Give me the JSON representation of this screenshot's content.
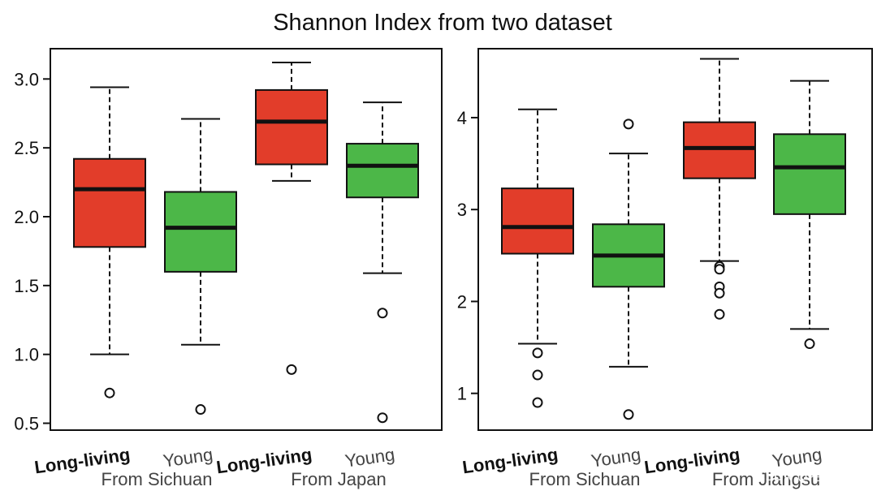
{
  "title": "Shannon Index from two dataset",
  "watermark": "CSDN @谷禾牛博",
  "colors": {
    "long_living": "#e23d2a",
    "young": "#4cb748",
    "axis": "#111111"
  },
  "chart_data": [
    {
      "type": "box",
      "panel": "left",
      "ylim": [
        0.45,
        3.22
      ],
      "yticks": [
        0.5,
        1.0,
        1.5,
        2.0,
        2.5,
        3.0
      ],
      "ytick_labels": [
        "0.5",
        "1.0",
        "1.5",
        "2.0",
        "2.5",
        "3.0"
      ],
      "groups": [
        "From Sichuan",
        "From Japan"
      ],
      "boxes": [
        {
          "label": "Long-living",
          "group": 0,
          "color": "long_living",
          "whisker_low": 1.0,
          "q1": 1.78,
          "median": 2.2,
          "q3": 2.42,
          "whisker_high": 2.94,
          "outliers": [
            0.72
          ]
        },
        {
          "label": "Young",
          "group": 0,
          "color": "young",
          "whisker_low": 1.07,
          "q1": 1.6,
          "median": 1.92,
          "q3": 2.18,
          "whisker_high": 2.71,
          "outliers": [
            0.6
          ]
        },
        {
          "label": "Long-living",
          "group": 1,
          "color": "long_living",
          "whisker_low": 2.26,
          "q1": 2.38,
          "median": 2.69,
          "q3": 2.92,
          "whisker_high": 3.12,
          "outliers": [
            0.89
          ]
        },
        {
          "label": "Young",
          "group": 1,
          "color": "young",
          "whisker_low": 1.59,
          "q1": 2.14,
          "median": 2.37,
          "q3": 2.53,
          "whisker_high": 2.83,
          "outliers": [
            1.3,
            0.54
          ]
        }
      ]
    },
    {
      "type": "box",
      "panel": "right",
      "ylim": [
        0.6,
        4.75
      ],
      "yticks": [
        1,
        2,
        3,
        4
      ],
      "ytick_labels": [
        "1",
        "2",
        "3",
        "4"
      ],
      "groups": [
        "From Sichuan",
        "From Jiangsu"
      ],
      "boxes": [
        {
          "label": "Long-living",
          "group": 0,
          "color": "long_living",
          "whisker_low": 1.54,
          "q1": 2.52,
          "median": 2.81,
          "q3": 3.23,
          "whisker_high": 4.09,
          "outliers": [
            1.44,
            1.2,
            0.9
          ]
        },
        {
          "label": "Young",
          "group": 0,
          "color": "young",
          "whisker_low": 1.29,
          "q1": 2.16,
          "median": 2.5,
          "q3": 2.84,
          "whisker_high": 3.61,
          "outliers": [
            3.93,
            0.77
          ]
        },
        {
          "label": "Long-living",
          "group": 1,
          "color": "long_living",
          "whisker_low": 2.44,
          "q1": 3.34,
          "median": 3.67,
          "q3": 3.95,
          "whisker_high": 4.64,
          "outliers": [
            2.38,
            2.35,
            2.16,
            2.09,
            1.86
          ]
        },
        {
          "label": "Young",
          "group": 1,
          "color": "young",
          "whisker_low": 1.7,
          "q1": 2.95,
          "median": 3.46,
          "q3": 3.82,
          "whisker_high": 4.4,
          "outliers": [
            1.54
          ]
        }
      ]
    }
  ]
}
